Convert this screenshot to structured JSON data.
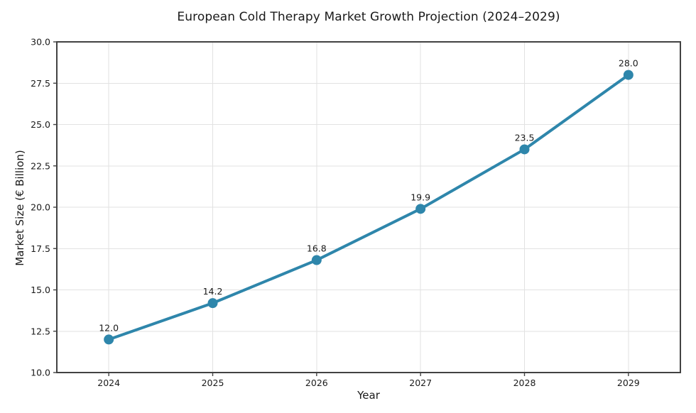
{
  "chart_data": {
    "type": "line",
    "title": "European Cold Therapy Market Growth Projection (2024–2029)",
    "xlabel": "Year",
    "ylabel": "Market Size (€ Billion)",
    "x": [
      2024,
      2025,
      2026,
      2027,
      2028,
      2029
    ],
    "x_tick_labels": [
      "2024",
      "2025",
      "2026",
      "2027",
      "2028",
      "2029"
    ],
    "series": [
      {
        "name": "Market Size",
        "values": [
          12.0,
          14.2,
          16.8,
          19.9,
          23.5,
          28.0
        ],
        "point_labels": [
          "12.0",
          "14.2",
          "16.8",
          "19.9",
          "23.5",
          "28.0"
        ]
      }
    ],
    "xlim": [
      2023.5,
      2029.5
    ],
    "ylim": [
      10.0,
      30.0
    ],
    "y_ticks": [
      10.0,
      12.5,
      15.0,
      17.5,
      20.0,
      22.5,
      25.0,
      27.5,
      30.0
    ],
    "y_tick_labels": [
      "10.0",
      "12.5",
      "15.0",
      "17.5",
      "20.0",
      "22.5",
      "25.0",
      "27.5",
      "30.0"
    ],
    "grid": true,
    "legend": "none",
    "colors": {
      "line": "#2E86AB",
      "marker": "#2E86AB",
      "grid": "#e2e2e2",
      "spine": "#424242",
      "text": "#1a1a1a",
      "background": "#ffffff"
    }
  }
}
